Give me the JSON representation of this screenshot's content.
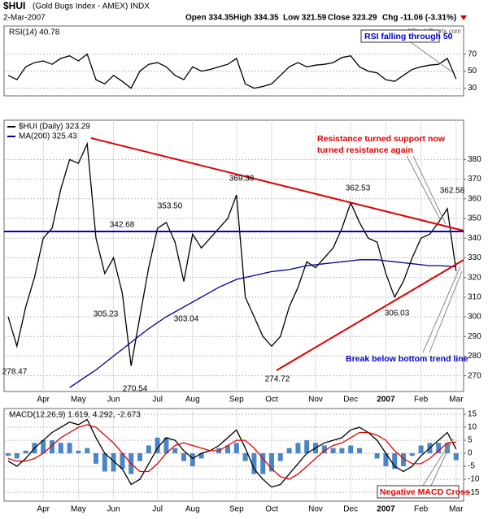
{
  "header": {
    "ticker": "$HUI",
    "name": "(Gold Bugs Index - AMEX) INDX",
    "date": "2-Mar-2007",
    "stats": [
      "Open 334.35",
      "High 334.35",
      "Low 321.59",
      "Close 323.29",
      "Chg -11.06 (-3.31%)"
    ],
    "watermark": "©StockCharts.com"
  },
  "annotations": {
    "rsi_note": "RSI falling through 50",
    "resistance_note": [
      "Resistance turned support now",
      "turned resistance again"
    ],
    "break_note": "Break below bottom trend line",
    "macd_note": "Negative MACD Cross",
    "price_labels": [
      "369.38",
      "362.53",
      "362.58",
      "353.50",
      "342.68",
      "305.23",
      "303.04",
      "306.03",
      "278.47",
      "270.54",
      "274.72"
    ]
  },
  "chart_data": [
    {
      "type": "line",
      "title": "RSI(14) 40.78",
      "ylim": [
        21,
        103
      ],
      "yticks": [
        30,
        50,
        70
      ],
      "grid": true,
      "series": [
        {
          "color": "#000000",
          "values": [
            45,
            40,
            55,
            60,
            62,
            58,
            65,
            68,
            62,
            70,
            40,
            35,
            45,
            38,
            30,
            50,
            58,
            60,
            55,
            45,
            40,
            55,
            50,
            52,
            55,
            58,
            65,
            35,
            30,
            32,
            35,
            45,
            55,
            60,
            55,
            57,
            58,
            60,
            66,
            68,
            55,
            50,
            48,
            40,
            38,
            45,
            52,
            55,
            57,
            58,
            65,
            40.78
          ]
        }
      ]
    },
    {
      "type": "line",
      "ylim": [
        262,
        400
      ],
      "yticks": [
        270,
        280,
        290,
        300,
        310,
        320,
        330,
        340,
        350,
        360,
        370,
        380
      ],
      "grid": true,
      "categories": [
        null,
        null,
        null,
        null,
        "Apr",
        null,
        null,
        null,
        "May",
        null,
        null,
        null,
        "Jun",
        null,
        null,
        null,
        null,
        "Jul",
        null,
        null,
        null,
        "Aug",
        null,
        null,
        null,
        null,
        "Sep",
        null,
        null,
        null,
        "Oct",
        null,
        null,
        null,
        null,
        "Nov",
        null,
        null,
        null,
        "Dec",
        null,
        null,
        null,
        "2007",
        null,
        null,
        null,
        "Feb",
        null,
        null,
        null,
        "Mar"
      ],
      "series": [
        {
          "name": "$HUI (Daily) 323.29",
          "color": "#000000",
          "values": [
            300,
            285,
            305,
            320,
            340,
            345,
            365,
            380,
            378,
            388,
            340,
            322,
            330,
            312,
            275,
            300,
            325,
            345,
            348,
            338,
            318,
            342,
            335,
            340,
            345,
            350,
            362,
            310,
            300,
            290,
            285,
            290,
            305,
            315,
            328,
            325,
            330,
            335,
            345,
            358,
            348,
            340,
            338,
            322,
            310,
            318,
            330,
            340,
            342,
            348,
            355,
            323.29
          ]
        },
        {
          "name": "MA(200) 325.43",
          "color": "#00008b",
          "values": [
            null,
            null,
            null,
            null,
            null,
            null,
            null,
            264,
            267,
            270,
            273,
            276.5,
            280,
            283.5,
            287,
            290.5,
            294,
            297,
            300,
            302.5,
            305,
            307.5,
            310,
            312.5,
            315,
            317,
            319,
            320,
            321,
            322,
            323,
            323.5,
            324,
            325,
            326,
            326.5,
            327,
            327.5,
            328,
            328.5,
            329,
            329,
            329,
            328.5,
            328,
            327.5,
            327,
            326.5,
            326,
            326,
            325.8,
            325.43
          ]
        }
      ]
    },
    {
      "type": "line",
      "title": "MACD(12,26,9) 1.619, 4.292, -2.673",
      "ylim": [
        -18.4,
        17.2
      ],
      "yticks": [
        -15,
        -10,
        -5,
        0,
        5,
        10,
        15
      ],
      "grid": true,
      "categories": [
        null,
        null,
        null,
        null,
        "Apr",
        null,
        null,
        null,
        "May",
        null,
        null,
        null,
        "Jun",
        null,
        null,
        null,
        null,
        "Jul",
        null,
        null,
        null,
        "Aug",
        null,
        null,
        null,
        null,
        "Sep",
        null,
        null,
        null,
        "Oct",
        null,
        null,
        null,
        null,
        "Nov",
        null,
        null,
        null,
        "Dec",
        null,
        null,
        null,
        "2007",
        null,
        null,
        null,
        "Feb",
        null,
        null,
        null,
        "Mar"
      ],
      "series": [
        {
          "type": "bar",
          "color": "#4a86c6",
          "values": [
            -1,
            -2,
            1,
            4,
            5,
            5,
            4,
            4,
            1,
            2,
            -4,
            -7,
            -7,
            -6,
            -8,
            -3,
            3,
            6,
            6,
            2,
            -3,
            -5,
            -2,
            0,
            2,
            3,
            4,
            -3,
            -8,
            -8,
            -7,
            -3,
            2,
            4,
            5,
            4,
            3,
            2,
            2,
            3,
            2,
            0,
            -2,
            -5,
            -6,
            -5,
            -1,
            3,
            4,
            4,
            4,
            -2.673
          ]
        },
        {
          "type": "line",
          "color": "#000000",
          "values": [
            -3,
            -5,
            -2,
            2,
            5,
            8,
            10,
            12,
            11,
            13,
            6,
            0,
            -3,
            -6,
            -12,
            -10,
            -4,
            2,
            6,
            5,
            1,
            -2,
            0,
            1,
            3,
            6,
            9,
            2,
            -6,
            -10,
            -13,
            -12,
            -8,
            -4,
            0,
            2,
            4,
            5,
            6,
            9,
            10,
            8,
            5,
            0,
            -5,
            -7,
            -5,
            -1,
            2,
            5,
            8,
            1.619
          ]
        },
        {
          "type": "line",
          "color": "#e00000",
          "values": [
            -2,
            -3,
            -3,
            -2,
            0,
            3,
            6,
            8,
            10,
            11,
            10,
            7,
            4,
            0,
            -4,
            -7,
            -7,
            -4,
            0,
            3,
            4,
            3,
            2,
            1,
            1,
            3,
            5,
            5,
            2,
            -2,
            -6,
            -9,
            -10,
            -8,
            -5,
            -2,
            1,
            3,
            4,
            6,
            8,
            8,
            7,
            5,
            1,
            -2,
            -4,
            -4,
            -2,
            1,
            4,
            4.292
          ]
        }
      ]
    }
  ]
}
